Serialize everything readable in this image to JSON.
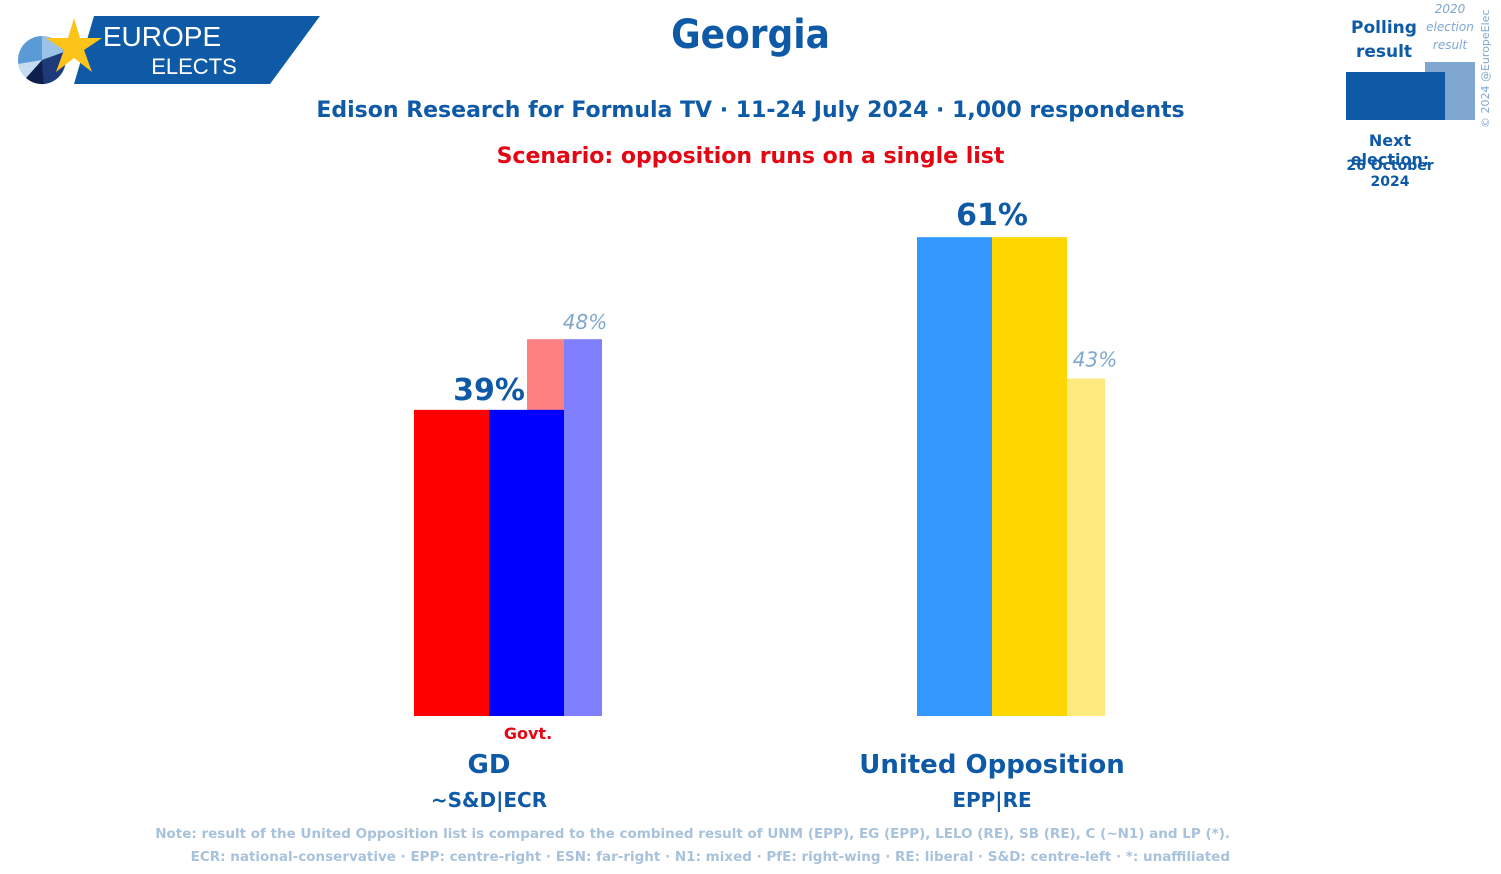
{
  "logo": {
    "line1": "EUROPE",
    "line2": "ELECTS"
  },
  "header": {
    "title": "Georgia",
    "subtitle": "Edison Research for Formula TV · 11-24 July 2024 · 1,000 respondents",
    "scenario": "Scenario: opposition runs on a single list"
  },
  "legend": {
    "polling_label_1": "Polling",
    "polling_label_2": "result",
    "prev_label_1": "2020",
    "prev_label_2": "election",
    "prev_label_3": "result",
    "next_election_label": "Next election:",
    "next_election_date": "26 October 2024",
    "copyright": "© 2024 @EuropeElects"
  },
  "colors": {
    "brand_blue": "#0f5aa6",
    "scenario_red": "#e30613",
    "gd_red": "#ff0000",
    "gd_blue": "#0000ff",
    "gd_prev_red": "#ff8080",
    "gd_prev_blue": "#8080ff",
    "uo_blue": "#3399ff",
    "uo_yellow": "#ffd700",
    "uo_prev_yellow": "#ffea80"
  },
  "chart_data": {
    "type": "bar",
    "title": "Georgia",
    "categories": [
      "GD",
      "United Opposition"
    ],
    "series": [
      {
        "name": "Polling result",
        "values": [
          39,
          61
        ]
      },
      {
        "name": "2020 election result",
        "values": [
          48,
          43
        ]
      }
    ],
    "value_labels": [
      "39%",
      "61%"
    ],
    "prev_labels": [
      "48%",
      "43%"
    ],
    "groups": [
      "~S&D|ECR",
      "EPP|RE"
    ],
    "govt_marker": "Govt.",
    "ylim": [
      0,
      70
    ],
    "grid": false,
    "legend": "top-right"
  },
  "notes": {
    "line1": "Note: result of the United Opposition list is compared to the combined result of UNM (EPP), EG (EPP), LELO (RE), SB (RE), C (~N1) and LP (*).",
    "line2": "ECR: national-conservative · EPP: centre-right · ESN: far-right · N1: mixed · PfE: right-wing · RE: liberal · S&D: centre-left · *: unaffiliated"
  }
}
